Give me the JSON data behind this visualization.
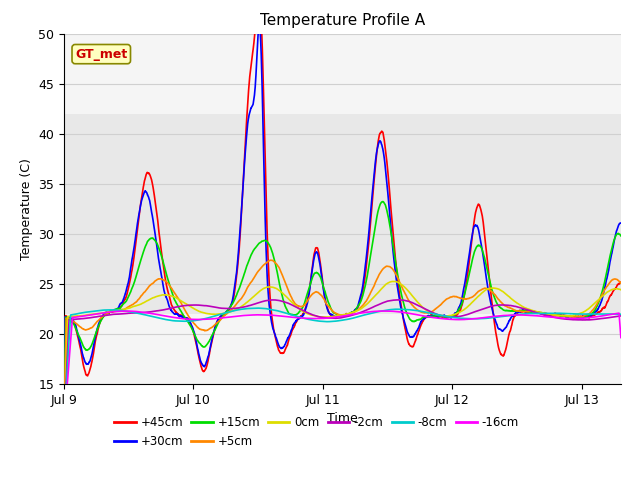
{
  "title": "Temperature Profile A",
  "xlabel": "Time",
  "ylabel": "Temperature (C)",
  "ylim": [
    15,
    50
  ],
  "yticks": [
    15,
    20,
    25,
    30,
    35,
    40,
    45,
    50
  ],
  "xlim": [
    0,
    4.3
  ],
  "xtick_positions": [
    0,
    1,
    2,
    3,
    4
  ],
  "xtick_labels": [
    "Jul 9",
    "Jul 10",
    "Jul 11",
    "Jul 12",
    "Jul 13"
  ],
  "shaded_region": [
    22,
    42
  ],
  "annotation_text": "GT_met",
  "legend_entries": [
    {
      "label": "+45cm",
      "color": "#ff0000"
    },
    {
      "label": "+30cm",
      "color": "#0000ff"
    },
    {
      "label": "+15cm",
      "color": "#00dd00"
    },
    {
      "label": "+5cm",
      "color": "#ff8800"
    },
    {
      "label": "0cm",
      "color": "#dddd00"
    },
    {
      "label": "-2cm",
      "color": "#bb00bb"
    },
    {
      "label": "-8cm",
      "color": "#00cccc"
    },
    {
      "label": "-16cm",
      "color": "#ff00ff"
    }
  ],
  "plot_bg": "#f5f5f5",
  "fig_bg": "#ffffff",
  "grid_color": "#d0d0d0"
}
